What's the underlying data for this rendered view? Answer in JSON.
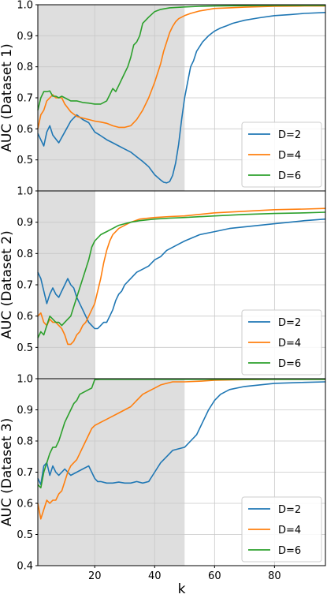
{
  "chart_data": [
    {
      "type": "line",
      "ylabel": "AUC (Dataset 1)",
      "xlim": [
        1,
        97
      ],
      "ylim": [
        0.4,
        1.0
      ],
      "yticks": [
        "0.5",
        "0.6",
        "0.7",
        "0.8",
        "0.9",
        "1.0"
      ],
      "xticks": [],
      "shaded_range": [
        1,
        50
      ],
      "grid": true,
      "legend": "lower-right",
      "series": [
        {
          "name": "D=2",
          "color": "#1f77b4",
          "x": [
            1,
            3,
            4,
            5,
            6,
            8,
            10,
            12,
            14,
            16,
            18,
            20,
            22,
            24,
            26,
            28,
            30,
            32,
            34,
            36,
            38,
            40,
            42,
            43,
            44,
            45,
            46,
            47,
            48,
            49,
            50,
            51,
            52,
            53,
            54,
            56,
            58,
            60,
            62,
            64,
            66,
            70,
            75,
            80,
            85,
            90,
            97
          ],
          "y": [
            0.585,
            0.545,
            0.59,
            0.61,
            0.58,
            0.555,
            0.59,
            0.625,
            0.645,
            0.63,
            0.62,
            0.59,
            0.578,
            0.565,
            0.555,
            0.545,
            0.535,
            0.525,
            0.51,
            0.495,
            0.478,
            0.452,
            0.435,
            0.428,
            0.426,
            0.43,
            0.45,
            0.49,
            0.55,
            0.63,
            0.7,
            0.75,
            0.8,
            0.82,
            0.85,
            0.88,
            0.9,
            0.915,
            0.925,
            0.932,
            0.94,
            0.95,
            0.958,
            0.965,
            0.968,
            0.972,
            0.975
          ]
        },
        {
          "name": "D=4",
          "color": "#ff7f0e",
          "x": [
            1,
            2,
            3,
            4,
            5,
            6,
            7,
            8,
            9,
            10,
            12,
            14,
            16,
            18,
            20,
            22,
            24,
            26,
            28,
            30,
            32,
            34,
            36,
            38,
            40,
            41,
            42,
            43,
            44,
            45,
            46,
            47,
            48,
            50,
            52,
            55,
            60,
            65,
            70,
            80,
            90,
            97
          ],
          "y": [
            0.6,
            0.645,
            0.66,
            0.69,
            0.7,
            0.71,
            0.7,
            0.7,
            0.7,
            0.68,
            0.655,
            0.64,
            0.635,
            0.63,
            0.625,
            0.622,
            0.618,
            0.61,
            0.605,
            0.605,
            0.61,
            0.63,
            0.66,
            0.7,
            0.75,
            0.78,
            0.81,
            0.85,
            0.88,
            0.91,
            0.93,
            0.945,
            0.955,
            0.965,
            0.972,
            0.98,
            0.988,
            0.99,
            0.992,
            0.995,
            0.996,
            0.996
          ]
        },
        {
          "name": "D=6",
          "color": "#2ca02c",
          "x": [
            1,
            2,
            3,
            4,
            5,
            6,
            7,
            8,
            9,
            10,
            12,
            14,
            16,
            18,
            20,
            22,
            24,
            25,
            26,
            27,
            28,
            29,
            30,
            31,
            32,
            33,
            34,
            35,
            36,
            38,
            40,
            42,
            45,
            50,
            55,
            60,
            70,
            80,
            90,
            97
          ],
          "y": [
            0.66,
            0.7,
            0.72,
            0.72,
            0.722,
            0.705,
            0.705,
            0.7,
            0.705,
            0.7,
            0.69,
            0.69,
            0.685,
            0.683,
            0.68,
            0.68,
            0.69,
            0.71,
            0.73,
            0.72,
            0.74,
            0.76,
            0.78,
            0.8,
            0.83,
            0.87,
            0.88,
            0.9,
            0.94,
            0.96,
            0.978,
            0.985,
            0.99,
            0.993,
            0.995,
            0.996,
            0.997,
            0.998,
            0.998,
            0.998
          ]
        }
      ]
    },
    {
      "type": "line",
      "ylabel": "AUC (Dataset 2)",
      "xlim": [
        1,
        97
      ],
      "ylim": [
        0.4,
        1.0
      ],
      "yticks": [
        "0.5",
        "0.6",
        "0.7",
        "0.8",
        "0.9",
        "1.0"
      ],
      "xticks": [],
      "shaded_range": [
        1,
        20
      ],
      "grid": true,
      "legend": "lower-right",
      "series": [
        {
          "name": "D=2",
          "color": "#1f77b4",
          "x": [
            1,
            2,
            3,
            4,
            5,
            6,
            7,
            8,
            9,
            10,
            11,
            12,
            13,
            14,
            15,
            16,
            17,
            18,
            19,
            20,
            21,
            22,
            23,
            24,
            25,
            26,
            27,
            28,
            29,
            30,
            32,
            34,
            36,
            38,
            40,
            42,
            44,
            46,
            48,
            50,
            55,
            60,
            65,
            70,
            75,
            80,
            85,
            90,
            97
          ],
          "y": [
            0.74,
            0.72,
            0.68,
            0.64,
            0.67,
            0.69,
            0.67,
            0.66,
            0.68,
            0.7,
            0.72,
            0.7,
            0.69,
            0.66,
            0.64,
            0.62,
            0.6,
            0.58,
            0.57,
            0.56,
            0.56,
            0.57,
            0.58,
            0.58,
            0.6,
            0.62,
            0.65,
            0.67,
            0.68,
            0.7,
            0.72,
            0.74,
            0.75,
            0.76,
            0.78,
            0.79,
            0.81,
            0.82,
            0.83,
            0.84,
            0.86,
            0.87,
            0.88,
            0.885,
            0.89,
            0.895,
            0.9,
            0.905,
            0.91
          ]
        },
        {
          "name": "D=4",
          "color": "#ff7f0e",
          "x": [
            1,
            2,
            3,
            4,
            5,
            6,
            7,
            8,
            9,
            10,
            11,
            12,
            13,
            14,
            15,
            16,
            17,
            18,
            19,
            20,
            21,
            22,
            23,
            24,
            25,
            26,
            27,
            28,
            30,
            32,
            35,
            40,
            45,
            50,
            60,
            70,
            80,
            90,
            97
          ],
          "y": [
            0.6,
            0.61,
            0.58,
            0.57,
            0.59,
            0.58,
            0.58,
            0.57,
            0.56,
            0.54,
            0.51,
            0.51,
            0.52,
            0.54,
            0.55,
            0.57,
            0.58,
            0.6,
            0.62,
            0.64,
            0.68,
            0.72,
            0.77,
            0.81,
            0.84,
            0.86,
            0.87,
            0.88,
            0.89,
            0.9,
            0.91,
            0.915,
            0.918,
            0.92,
            0.93,
            0.935,
            0.94,
            0.942,
            0.944
          ]
        },
        {
          "name": "D=6",
          "color": "#2ca02c",
          "x": [
            1,
            2,
            3,
            4,
            5,
            6,
            7,
            8,
            9,
            10,
            11,
            12,
            13,
            14,
            15,
            16,
            17,
            18,
            19,
            20,
            21,
            22,
            23,
            24,
            25,
            26,
            27,
            28,
            30,
            32,
            35,
            40,
            45,
            50,
            60,
            70,
            80,
            90,
            97
          ],
          "y": [
            0.53,
            0.55,
            0.54,
            0.57,
            0.6,
            0.59,
            0.58,
            0.58,
            0.57,
            0.58,
            0.59,
            0.6,
            0.63,
            0.66,
            0.69,
            0.72,
            0.75,
            0.78,
            0.82,
            0.84,
            0.85,
            0.86,
            0.865,
            0.87,
            0.875,
            0.88,
            0.885,
            0.89,
            0.895,
            0.9,
            0.905,
            0.91,
            0.913,
            0.915,
            0.92,
            0.925,
            0.928,
            0.93,
            0.932
          ]
        }
      ]
    },
    {
      "type": "line",
      "ylabel": "AUC (Dataset 3)",
      "xlabel": "k",
      "xlim": [
        1,
        97
      ],
      "ylim": [
        0.4,
        1.0
      ],
      "yticks": [
        "0.4",
        "0.5",
        "0.6",
        "0.7",
        "0.8",
        "0.9",
        "1.0"
      ],
      "xticks": [
        "20",
        "40",
        "60",
        "80"
      ],
      "shaded_range": [
        1,
        50
      ],
      "grid": true,
      "legend": "lower-right",
      "series": [
        {
          "name": "D=2",
          "color": "#1f77b4",
          "x": [
            1,
            2,
            3,
            4,
            5,
            6,
            7,
            8,
            9,
            10,
            12,
            14,
            16,
            18,
            20,
            21,
            22,
            24,
            26,
            28,
            30,
            32,
            34,
            36,
            38,
            40,
            42,
            44,
            46,
            48,
            50,
            52,
            54,
            56,
            58,
            60,
            62,
            65,
            70,
            75,
            80,
            90,
            97
          ],
          "y": [
            0.68,
            0.66,
            0.72,
            0.73,
            0.69,
            0.72,
            0.7,
            0.69,
            0.7,
            0.71,
            0.69,
            0.7,
            0.71,
            0.72,
            0.68,
            0.67,
            0.67,
            0.665,
            0.665,
            0.668,
            0.665,
            0.665,
            0.67,
            0.665,
            0.67,
            0.7,
            0.73,
            0.75,
            0.77,
            0.775,
            0.78,
            0.8,
            0.82,
            0.86,
            0.9,
            0.93,
            0.95,
            0.965,
            0.975,
            0.98,
            0.985,
            0.988,
            0.99
          ]
        },
        {
          "name": "D=4",
          "color": "#ff7f0e",
          "x": [
            1,
            2,
            3,
            4,
            5,
            6,
            7,
            8,
            9,
            10,
            11,
            12,
            13,
            14,
            15,
            16,
            17,
            18,
            19,
            20,
            22,
            24,
            26,
            28,
            30,
            32,
            34,
            36,
            38,
            40,
            42,
            44,
            46,
            48,
            50,
            55,
            60,
            70,
            80,
            90,
            97
          ],
          "y": [
            0.6,
            0.55,
            0.58,
            0.61,
            0.6,
            0.61,
            0.61,
            0.63,
            0.64,
            0.67,
            0.7,
            0.72,
            0.73,
            0.74,
            0.76,
            0.78,
            0.8,
            0.82,
            0.84,
            0.85,
            0.86,
            0.87,
            0.88,
            0.89,
            0.9,
            0.91,
            0.93,
            0.95,
            0.96,
            0.97,
            0.98,
            0.985,
            0.99,
            0.99,
            0.99,
            0.992,
            0.995,
            0.997,
            0.998,
            0.998,
            0.998
          ]
        },
        {
          "name": "D=6",
          "color": "#2ca02c",
          "x": [
            1,
            2,
            3,
            4,
            5,
            6,
            7,
            8,
            9,
            10,
            11,
            12,
            13,
            14,
            15,
            16,
            17,
            18,
            19,
            20,
            22,
            25,
            30,
            40,
            50,
            60,
            70,
            80,
            90,
            97
          ],
          "y": [
            0.66,
            0.65,
            0.7,
            0.73,
            0.76,
            0.78,
            0.78,
            0.8,
            0.83,
            0.86,
            0.88,
            0.9,
            0.92,
            0.93,
            0.95,
            0.955,
            0.96,
            0.965,
            0.97,
            0.997,
            0.998,
            0.998,
            0.998,
            0.998,
            0.998,
            0.998,
            0.998,
            0.998,
            0.998,
            0.998
          ]
        }
      ]
    }
  ]
}
